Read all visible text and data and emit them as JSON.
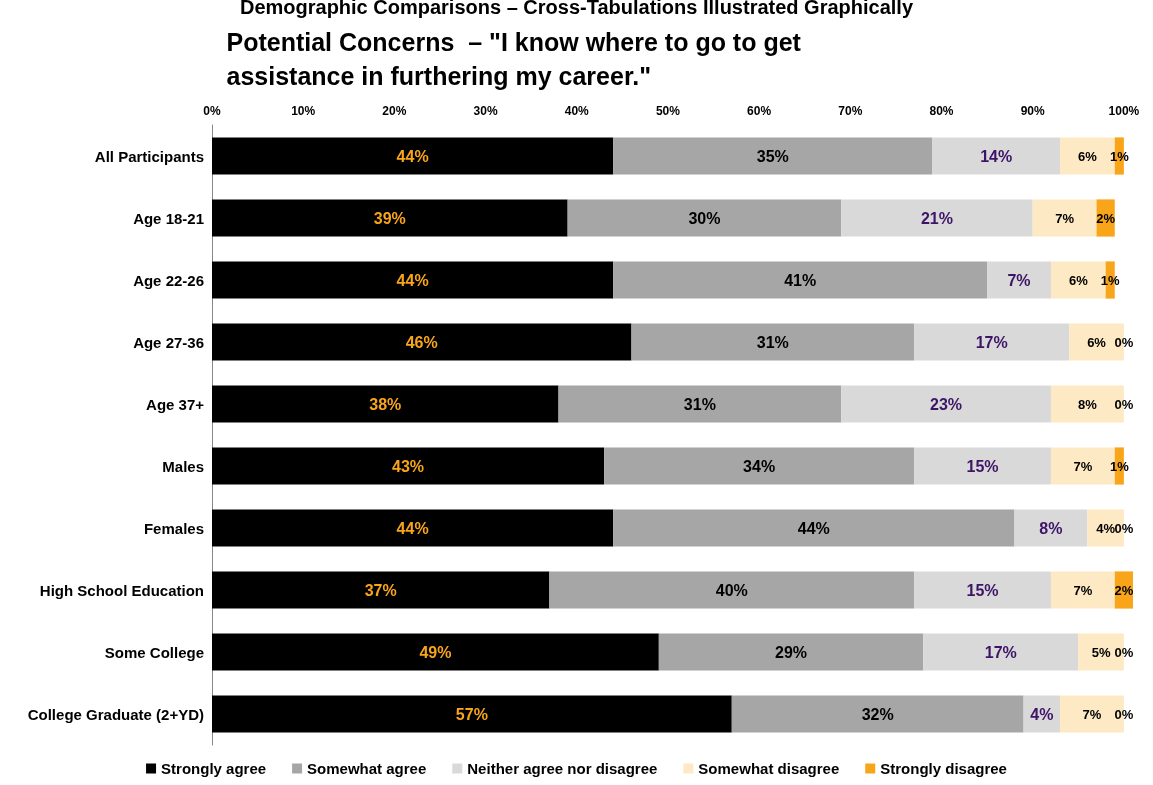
{
  "chart_data": {
    "type": "bar",
    "orientation": "horizontal",
    "stacked": true,
    "legend": "bottom",
    "grid": false,
    "title": "Potential Concerns  – \"I know where to go to get assistance in furthering my career.\"",
    "annotations": [
      "Demographic Comparisons – Cross-Tabulations Illustrated Graphically"
    ],
    "categories": [
      "All Participants",
      "Age 18-21",
      "Age 22-26",
      "Age 27-36",
      "Age 37+",
      "Males",
      "Females",
      "High School Education",
      "Some College",
      "College Graduate (2+YD)"
    ],
    "xlim": [
      0,
      101
    ],
    "xticks": [
      {
        "value": 0,
        "label": "0%"
      },
      {
        "value": 10,
        "label": "10%"
      },
      {
        "value": 20,
        "label": "20%"
      },
      {
        "value": 30,
        "label": "30%"
      },
      {
        "value": 40,
        "label": "40%"
      },
      {
        "value": 50,
        "label": "50%"
      },
      {
        "value": 60,
        "label": "60%"
      },
      {
        "value": 70,
        "label": "70%"
      },
      {
        "value": 80,
        "label": "80%"
      },
      {
        "value": 90,
        "label": "90%"
      },
      {
        "value": 100,
        "label": "100%"
      }
    ],
    "series": [
      {
        "name": "Strongly agree",
        "color": "#000000",
        "values": [
          44,
          39,
          44,
          46,
          38,
          43,
          44,
          37,
          49,
          57
        ],
        "value_labels": [
          "44%",
          "39%",
          "44%",
          "46%",
          "38%",
          "43%",
          "44%",
          "37%",
          "49%",
          "57%"
        ]
      },
      {
        "name": "Somewhat agree",
        "color": "#a6a6a6",
        "values": [
          35,
          30,
          41,
          31,
          31,
          34,
          44,
          40,
          29,
          32
        ],
        "value_labels": [
          "35%",
          "30%",
          "41%",
          "31%",
          "31%",
          "34%",
          "44%",
          "40%",
          "29%",
          "32%"
        ]
      },
      {
        "name": "Neither agree nor disagree",
        "color": "#d9d9d9",
        "values": [
          14,
          21,
          7,
          17,
          23,
          15,
          8,
          15,
          17,
          4
        ],
        "value_labels": [
          "14%",
          "21%",
          "7%",
          "17%",
          "23%",
          "15%",
          "8%",
          "15%",
          "17%",
          "4%"
        ]
      },
      {
        "name": "Somewhat disagree",
        "color": "#fde9c3",
        "values": [
          6,
          7,
          6,
          6,
          8,
          7,
          4,
          7,
          5,
          7
        ],
        "value_labels": [
          "6%",
          "7%",
          "6%",
          "6%",
          "8%",
          "7%",
          "4%",
          "7%",
          "5%",
          "7%"
        ]
      },
      {
        "name": "Strongly disagree",
        "color": "#f9a51a",
        "values": [
          1,
          2,
          1,
          0,
          0,
          1,
          0,
          2,
          0,
          0
        ],
        "value_labels": [
          "1%",
          "2%",
          "1%",
          "0%",
          "0%",
          "1%",
          "0%",
          "2%",
          "0%",
          "0%"
        ]
      }
    ]
  }
}
